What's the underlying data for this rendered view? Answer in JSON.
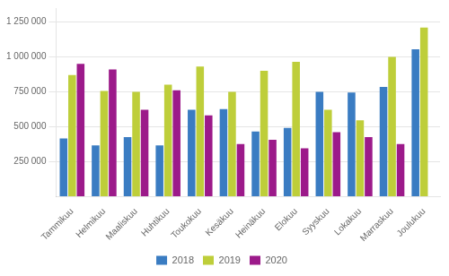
{
  "chart_data": {
    "type": "bar",
    "categories": [
      "Tammikuu",
      "Helmikuu",
      "Maaliskuu",
      "Huhtikuu",
      "Toukokuu",
      "Kesäkuu",
      "Heinäkuu",
      "Elokuu",
      "Syyskuu",
      "Lokakuu",
      "Marraskuu",
      "Joulukuu"
    ],
    "series": [
      {
        "name": "2018",
        "color": "#3A7CC2",
        "values": [
          415000,
          365000,
          425000,
          365000,
          620000,
          625000,
          465000,
          490000,
          750000,
          745000,
          785000,
          1055000
        ]
      },
      {
        "name": "2019",
        "color": "#BECE3A",
        "values": [
          870000,
          755000,
          750000,
          800000,
          930000,
          750000,
          900000,
          965000,
          620000,
          545000,
          1000000,
          1210000
        ]
      },
      {
        "name": "2020",
        "color": "#9C1A8A",
        "values": [
          950000,
          910000,
          620000,
          760000,
          580000,
          375000,
          405000,
          345000,
          460000,
          425000,
          375000,
          0
        ]
      }
    ],
    "ylim": [
      0,
      1350000
    ],
    "yticks": [
      {
        "value": 250000,
        "label": "250 000"
      },
      {
        "value": 500000,
        "label": "500 000"
      },
      {
        "value": 750000,
        "label": "750 000"
      },
      {
        "value": 1000000,
        "label": "1 000 000"
      },
      {
        "value": 1250000,
        "label": "1 250 000"
      }
    ],
    "grid": "y",
    "legend": "bottom"
  }
}
